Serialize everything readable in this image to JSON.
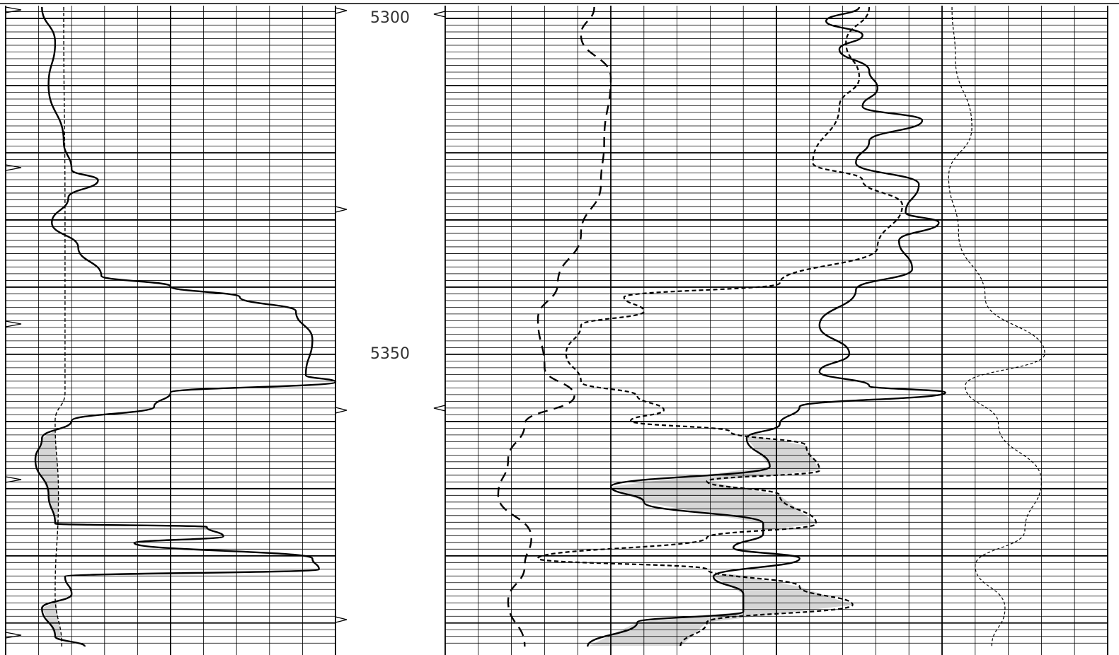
{
  "chart_data": {
    "type": "well_log",
    "ylim": [
      5298.1,
      5393.5
    ],
    "yticks": [
      5300,
      5350
    ],
    "grid": true,
    "fill_color": "#d6d6d6",
    "tracks": [
      {
        "xlim": [
          0,
          10
        ],
        "major_every": 5,
        "shade_below": 5358,
        "series": [
          {
            "color": "#000",
            "style": "solid",
            "depth": [
              5298.3,
              5303.6,
              5309.9,
              5318.3,
              5322.5,
              5324.1,
              5326.7,
              5330.4,
              5334.1,
              5338.3,
              5339.9,
              5341.5,
              5343.6,
              5347.8,
              5353.1,
              5354.1,
              5355.7,
              5357.8,
              5359.9,
              5362.5,
              5365.7,
              5370.9,
              5375.2,
              5375.7,
              5377.1,
              5378.1,
              5380.4,
              5382,
              5383.1,
              5385.7,
              5387.8,
              5392,
              5393.5
            ],
            "values": [
              1.1,
              1.5,
              1.3,
              1.76,
              2.0,
              2.8,
              1.9,
              1.4,
              2.2,
              2.9,
              5.0,
              7.1,
              8.8,
              9.3,
              9.1,
              10,
              5.0,
              4.5,
              2.0,
              1.1,
              0.9,
              1.3,
              1.5,
              6.1,
              6.6,
              3.9,
              9.3,
              9.5,
              1.8,
              2.0,
              1.1,
              1.5,
              2.4
            ]
          },
          {
            "color": "#000",
            "style": "dashed",
            "depth": [
              5298.3,
              5330.4,
              5355.7,
              5359.9,
              5370.9,
              5385.7,
              5393.5
            ],
            "values": [
              1.76,
              1.8,
              1.8,
              1.5,
              1.6,
              1.5,
              1.7
            ]
          }
        ]
      },
      {
        "xlim": [
          0,
          20
        ],
        "major_every": 5,
        "shade_below": 5360,
        "series": [
          {
            "color": "#000",
            "style": "solid",
            "depth": [
              5298.3,
              5300.4,
              5302.5,
              5304.6,
              5307.8,
              5310.4,
              5313.1,
              5315.2,
              5318.3,
              5321.5,
              5324.7,
              5328.9,
              5330.4,
              5333.1,
              5337.3,
              5340.4,
              5345.7,
              5349.9,
              5352.6,
              5354.7,
              5355.7,
              5357.8,
              5360.4,
              5362.5,
              5366.7,
              5369.7,
              5372,
              5375.2,
              5376.7,
              5378.8,
              5380.4,
              5383.1,
              5385.7,
              5388.3,
              5389.9,
              5393.5
            ],
            "values": [
              12.5,
              11.5,
              12.6,
              11.9,
              12.8,
              13.05,
              12.6,
              14.4,
              12.8,
              12.4,
              14.3,
              13.9,
              14.9,
              13.7,
              14.1,
              12.4,
              11.3,
              12.2,
              11.3,
              12.8,
              15.1,
              10.7,
              10.1,
              9.1,
              9.8,
              5.0,
              6.0,
              9.6,
              9.6,
              8.7,
              10.7,
              8.1,
              9.0,
              9.0,
              5.8,
              4.3
            ]
          },
          {
            "color": "#000",
            "style": "dotted",
            "depth": [
              5298.3,
              5303.6,
              5308.8,
              5313.1,
              5321.5,
              5324.1,
              5327.8,
              5334.1,
              5339.4,
              5341.5,
              5343.6,
              5345.7,
              5349.9,
              5354.1,
              5356.2,
              5358.3,
              5359.9,
              5361.5,
              5363.6,
              5367.3,
              5368.9,
              5371,
              5375.2,
              5377.3,
              5380.4,
              5382,
              5384.6,
              5387.3,
              5389.9,
              5393.5
            ],
            "values": [
              12.8,
              12.1,
              12.5,
              11.9,
              11.1,
              12.6,
              13.8,
              13.05,
              10.1,
              5.4,
              6.0,
              4.1,
              3.65,
              4.1,
              5.8,
              6.6,
              5.6,
              8.6,
              10.9,
              11.3,
              7.9,
              10.1,
              11.2,
              7.9,
              2.8,
              7.9,
              10.7,
              12.3,
              7.9,
              7.1
            ]
          },
          {
            "color": "#000",
            "style": "longdash",
            "depth": [
              5298.3,
              5302.5,
              5308.8,
              5318.3,
              5324.7,
              5332,
              5339.4,
              5344.7,
              5352,
              5356.2,
              5360.4,
              5365.7,
              5370.9,
              5377.3,
              5381.5,
              5386.8,
              5393.5
            ],
            "values": [
              4.5,
              4.1,
              5.0,
              4.8,
              4.7,
              4.1,
              3.4,
              2.8,
              3.0,
              3.9,
              2.4,
              1.9,
              1.6,
              2.6,
              2.4,
              1.9,
              2.4
            ]
          },
          {
            "color": "#000",
            "style": "thin",
            "depth": [
              5298.3,
              5305.7,
              5316.2,
              5323.6,
              5332,
              5341.5,
              5349.9,
              5354.7,
              5360.4,
              5368.9,
              5376.2,
              5381.5,
              5387.8,
              5393.5
            ],
            "values": [
              15.3,
              15.4,
              15.9,
              15.2,
              15.5,
              16.3,
              18.1,
              15.7,
              16.7,
              18.0,
              17.5,
              16.0,
              16.9,
              16.5
            ]
          }
        ]
      }
    ]
  }
}
